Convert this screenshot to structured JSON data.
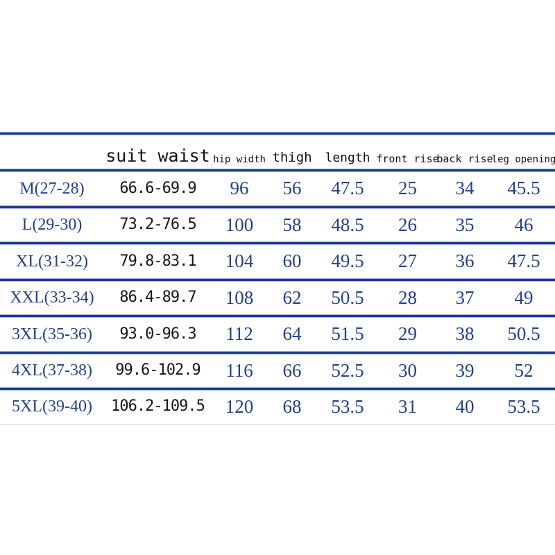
{
  "colors": {
    "background": "#ffffff",
    "rule_navy": "#1e3a8c",
    "rule_fringe": "#9dade0",
    "rule_faint": "#e6e4ed",
    "text_navy": "#23408e",
    "text_black": "#161616"
  },
  "chart_data": {
    "type": "table",
    "title": "",
    "legend_position": "none",
    "grid": "horizontal-rules-only",
    "columns": [
      {
        "key": "size",
        "label": ""
      },
      {
        "key": "suit_waist",
        "label": "suit waist"
      },
      {
        "key": "hip_width",
        "label": "hip width"
      },
      {
        "key": "thigh",
        "label": "thigh"
      },
      {
        "key": "length",
        "label": "length"
      },
      {
        "key": "front_rise",
        "label": "front rise"
      },
      {
        "key": "back_rise",
        "label": "back rise"
      },
      {
        "key": "leg_opening",
        "label": "leg opening"
      }
    ],
    "rows": [
      {
        "size": "M(27-28)",
        "suit_waist": "66.6-69.9",
        "hip_width": 96,
        "thigh": 56,
        "length": 47.5,
        "front_rise": 25,
        "back_rise": 34,
        "leg_opening": 45.5
      },
      {
        "size": "L(29-30)",
        "suit_waist": "73.2-76.5",
        "hip_width": 100,
        "thigh": 58,
        "length": 48.5,
        "front_rise": 26,
        "back_rise": 35,
        "leg_opening": 46
      },
      {
        "size": "XL(31-32)",
        "suit_waist": "79.8-83.1",
        "hip_width": 104,
        "thigh": 60,
        "length": 49.5,
        "front_rise": 27,
        "back_rise": 36,
        "leg_opening": 47.5
      },
      {
        "size": "XXL(33-34)",
        "suit_waist": "86.4-89.7",
        "hip_width": 108,
        "thigh": 62,
        "length": 50.5,
        "front_rise": 28,
        "back_rise": 37,
        "leg_opening": 49
      },
      {
        "size": "3XL(35-36)",
        "suit_waist": "93.0-96.3",
        "hip_width": 112,
        "thigh": 64,
        "length": 51.5,
        "front_rise": 29,
        "back_rise": 38,
        "leg_opening": 50.5
      },
      {
        "size": "4XL(37-38)",
        "suit_waist": "99.6-102.9",
        "hip_width": 116,
        "thigh": 66,
        "length": 52.5,
        "front_rise": 30,
        "back_rise": 39,
        "leg_opening": 52
      },
      {
        "size": "5XL(39-40)",
        "suit_waist": "106.2-109.5",
        "hip_width": 120,
        "thigh": 68,
        "length": 53.5,
        "front_rise": 31,
        "back_rise": 40,
        "leg_opening": 53.5
      }
    ]
  }
}
